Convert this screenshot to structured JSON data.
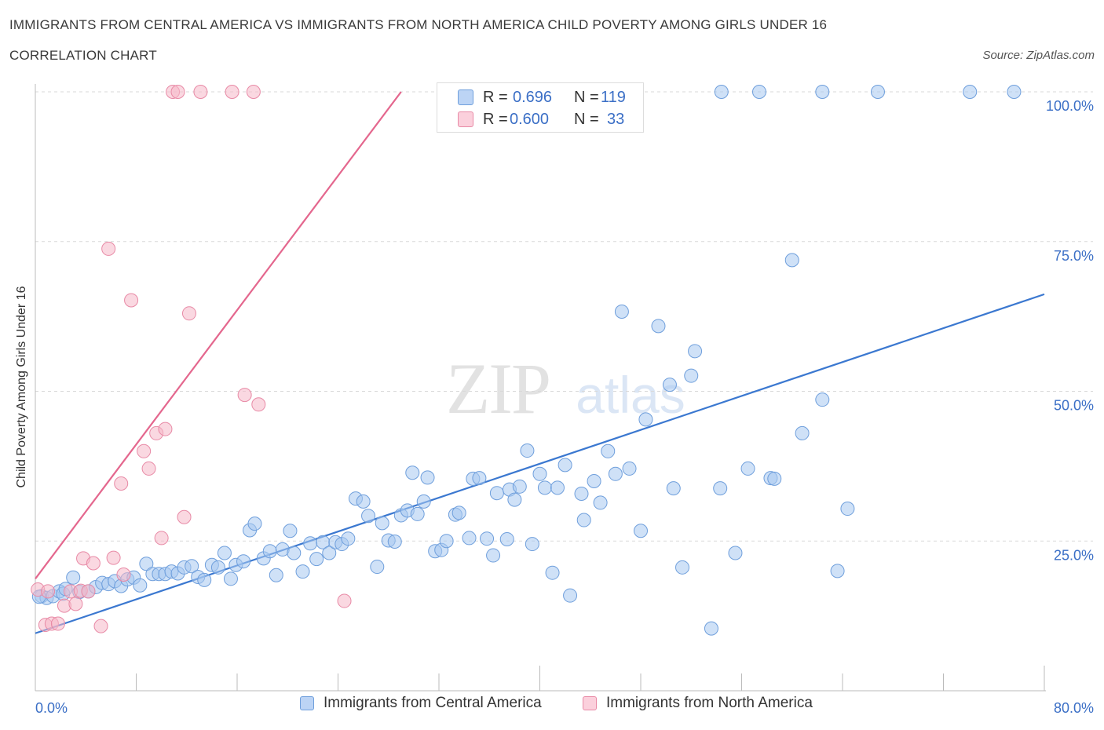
{
  "header": {
    "title": "IMMIGRANTS FROM CENTRAL AMERICA VS IMMIGRANTS FROM NORTH AMERICA CHILD POVERTY AMONG GIRLS UNDER 16",
    "subtitle": "CORRELATION CHART",
    "source": "Source: ZipAtlas.com"
  },
  "watermark": {
    "zip": "ZIP",
    "atlas": "atlas"
  },
  "stats": {
    "r_label": "R =",
    "n_label": "N =",
    "rows": [
      {
        "r": "0.696",
        "n": "119",
        "color": "#a8c8f0"
      },
      {
        "r": "0.600",
        "n": "33",
        "color": "#f6b8c8"
      }
    ]
  },
  "legend": {
    "items": [
      {
        "label": "Immigrants from Central America",
        "color": "#a8c8f0"
      },
      {
        "label": "Immigrants from North America",
        "color": "#f6b8c8"
      }
    ]
  },
  "colors": {
    "blue_fill": "#a8c8f0",
    "blue_stroke": "#6f9fdc",
    "blue_line": "#3b78d0",
    "pink_fill": "#f6b8c8",
    "pink_stroke": "#e88aa6",
    "pink_line": "#e4678e",
    "grid": "#d9d9d9",
    "axis_text": "#3b6fc6"
  },
  "chart_data": {
    "type": "scatter",
    "title": "IMMIGRANTS FROM CENTRAL AMERICA VS IMMIGRANTS FROM NORTH AMERICA CHILD POVERTY AMONG GIRLS UNDER 16",
    "xlabel": "",
    "ylabel": "Child Poverty Among Girls Under 16",
    "xlim": [
      0,
      80
    ],
    "ylim": [
      0,
      100
    ],
    "x_tick_labels": {
      "left": "0.0%",
      "right": "80.0%"
    },
    "y_ticks": [
      {
        "value": 100,
        "label": "100.0%"
      },
      {
        "value": 75,
        "label": "75.0%"
      },
      {
        "value": 50,
        "label": "50.0%"
      },
      {
        "value": 25,
        "label": "25.0%"
      }
    ],
    "series": [
      {
        "name": "Immigrants from Central America",
        "R": 0.696,
        "N": 119,
        "trendline": [
          [
            0,
            9.6
          ],
          [
            80,
            66.2
          ]
        ],
        "points": [
          [
            0.5,
            15.8
          ],
          [
            0.9,
            15.5
          ],
          [
            1.4,
            15.8
          ],
          [
            1.9,
            16.6
          ],
          [
            2.2,
            16.2
          ],
          [
            2.4,
            17.0
          ],
          [
            3.0,
            18.9
          ],
          [
            3.5,
            16.5
          ],
          [
            4.2,
            16.6
          ],
          [
            4.8,
            17.3
          ],
          [
            5.3,
            18.0
          ],
          [
            5.8,
            17.8
          ],
          [
            6.3,
            18.3
          ],
          [
            6.8,
            17.5
          ],
          [
            7.3,
            18.6
          ],
          [
            7.8,
            18.9
          ],
          [
            8.3,
            17.6
          ],
          [
            8.8,
            21.2
          ],
          [
            9.3,
            19.5
          ],
          [
            9.8,
            19.5
          ],
          [
            10.3,
            19.5
          ],
          [
            10.8,
            19.9
          ],
          [
            11.3,
            19.6
          ],
          [
            11.8,
            20.6
          ],
          [
            12.4,
            20.8
          ],
          [
            12.9,
            19.0
          ],
          [
            13.4,
            18.5
          ],
          [
            14.0,
            21.0
          ],
          [
            14.5,
            20.6
          ],
          [
            15.0,
            23.0
          ],
          [
            15.5,
            18.7
          ],
          [
            15.9,
            21.0
          ],
          [
            16.5,
            21.6
          ],
          [
            17.0,
            26.8
          ],
          [
            17.4,
            27.9
          ],
          [
            18.1,
            22.1
          ],
          [
            18.6,
            23.3
          ],
          [
            19.1,
            19.3
          ],
          [
            19.6,
            23.6
          ],
          [
            20.2,
            26.7
          ],
          [
            20.5,
            23.0
          ],
          [
            21.2,
            19.9
          ],
          [
            21.8,
            24.6
          ],
          [
            22.3,
            22.0
          ],
          [
            22.8,
            24.8
          ],
          [
            23.3,
            23.0
          ],
          [
            23.8,
            24.8
          ],
          [
            24.3,
            24.5
          ],
          [
            24.8,
            25.4
          ],
          [
            25.4,
            32.1
          ],
          [
            26.0,
            31.6
          ],
          [
            26.4,
            29.2
          ],
          [
            27.1,
            20.7
          ],
          [
            27.5,
            28.0
          ],
          [
            28.0,
            25.1
          ],
          [
            28.5,
            24.9
          ],
          [
            29.0,
            29.3
          ],
          [
            29.5,
            30.1
          ],
          [
            29.9,
            36.4
          ],
          [
            30.3,
            29.5
          ],
          [
            30.8,
            31.6
          ],
          [
            31.1,
            35.6
          ],
          [
            31.7,
            23.3
          ],
          [
            32.2,
            23.5
          ],
          [
            32.6,
            25.0
          ],
          [
            33.3,
            29.4
          ],
          [
            33.6,
            29.7
          ],
          [
            34.4,
            25.5
          ],
          [
            34.7,
            35.4
          ],
          [
            35.2,
            35.5
          ],
          [
            35.8,
            25.4
          ],
          [
            36.3,
            22.6
          ],
          [
            36.6,
            33.0
          ],
          [
            37.4,
            25.3
          ],
          [
            37.6,
            33.6
          ],
          [
            38.0,
            31.9
          ],
          [
            38.4,
            34.1
          ],
          [
            39.0,
            40.1
          ],
          [
            39.4,
            24.5
          ],
          [
            40.0,
            36.2
          ],
          [
            40.4,
            33.9
          ],
          [
            41.0,
            19.7
          ],
          [
            41.4,
            33.9
          ],
          [
            42.0,
            37.7
          ],
          [
            42.4,
            15.9
          ],
          [
            43.3,
            32.9
          ],
          [
            43.5,
            28.5
          ],
          [
            44.3,
            35.0
          ],
          [
            44.8,
            31.4
          ],
          [
            45.4,
            40.0
          ],
          [
            46.0,
            36.2
          ],
          [
            46.5,
            63.3
          ],
          [
            47.1,
            37.1
          ],
          [
            48.0,
            26.7
          ],
          [
            48.4,
            45.3
          ],
          [
            49.4,
            60.9
          ],
          [
            50.3,
            51.1
          ],
          [
            50.6,
            33.8
          ],
          [
            51.3,
            20.6
          ],
          [
            52.0,
            52.6
          ],
          [
            52.3,
            56.7
          ],
          [
            53.6,
            10.4
          ],
          [
            54.3,
            33.8
          ],
          [
            55.5,
            23.0
          ],
          [
            56.5,
            37.1
          ],
          [
            58.3,
            35.5
          ],
          [
            58.6,
            35.4
          ],
          [
            60.0,
            71.9
          ],
          [
            60.8,
            43.0
          ],
          [
            62.4,
            48.6
          ],
          [
            63.6,
            20.0
          ],
          [
            64.4,
            30.4
          ],
          [
            54.4,
            100.0
          ],
          [
            57.4,
            100.0
          ],
          [
            62.4,
            100.0
          ],
          [
            66.8,
            100.0
          ],
          [
            74.1,
            100.0
          ],
          [
            77.6,
            100.0
          ],
          [
            0.3,
            15.7
          ]
        ]
      },
      {
        "name": "Immigrants from North America",
        "R": 0.6,
        "N": 33,
        "trendline": [
          [
            0,
            18.7
          ],
          [
            29,
            100
          ]
        ],
        "points": [
          [
            0.2,
            16.9
          ],
          [
            0.8,
            11.0
          ],
          [
            1.0,
            16.6
          ],
          [
            1.3,
            11.2
          ],
          [
            1.8,
            11.2
          ],
          [
            2.3,
            14.2
          ],
          [
            2.8,
            16.6
          ],
          [
            3.2,
            14.5
          ],
          [
            3.6,
            16.7
          ],
          [
            3.8,
            22.1
          ],
          [
            4.2,
            16.6
          ],
          [
            4.6,
            21.3
          ],
          [
            5.2,
            10.8
          ],
          [
            5.8,
            73.8
          ],
          [
            6.2,
            22.2
          ],
          [
            6.8,
            34.6
          ],
          [
            7.0,
            19.4
          ],
          [
            7.6,
            65.2
          ],
          [
            8.6,
            40.0
          ],
          [
            9.0,
            37.1
          ],
          [
            9.6,
            43.0
          ],
          [
            10.0,
            25.5
          ],
          [
            10.3,
            43.7
          ],
          [
            11.8,
            29.0
          ],
          [
            12.2,
            63.0
          ],
          [
            16.6,
            49.4
          ],
          [
            17.7,
            47.8
          ],
          [
            24.5,
            15.0
          ],
          [
            10.9,
            100.0
          ],
          [
            11.3,
            100.0
          ],
          [
            13.1,
            100.0
          ],
          [
            15.6,
            100.0
          ],
          [
            17.3,
            100.0
          ]
        ]
      }
    ]
  }
}
